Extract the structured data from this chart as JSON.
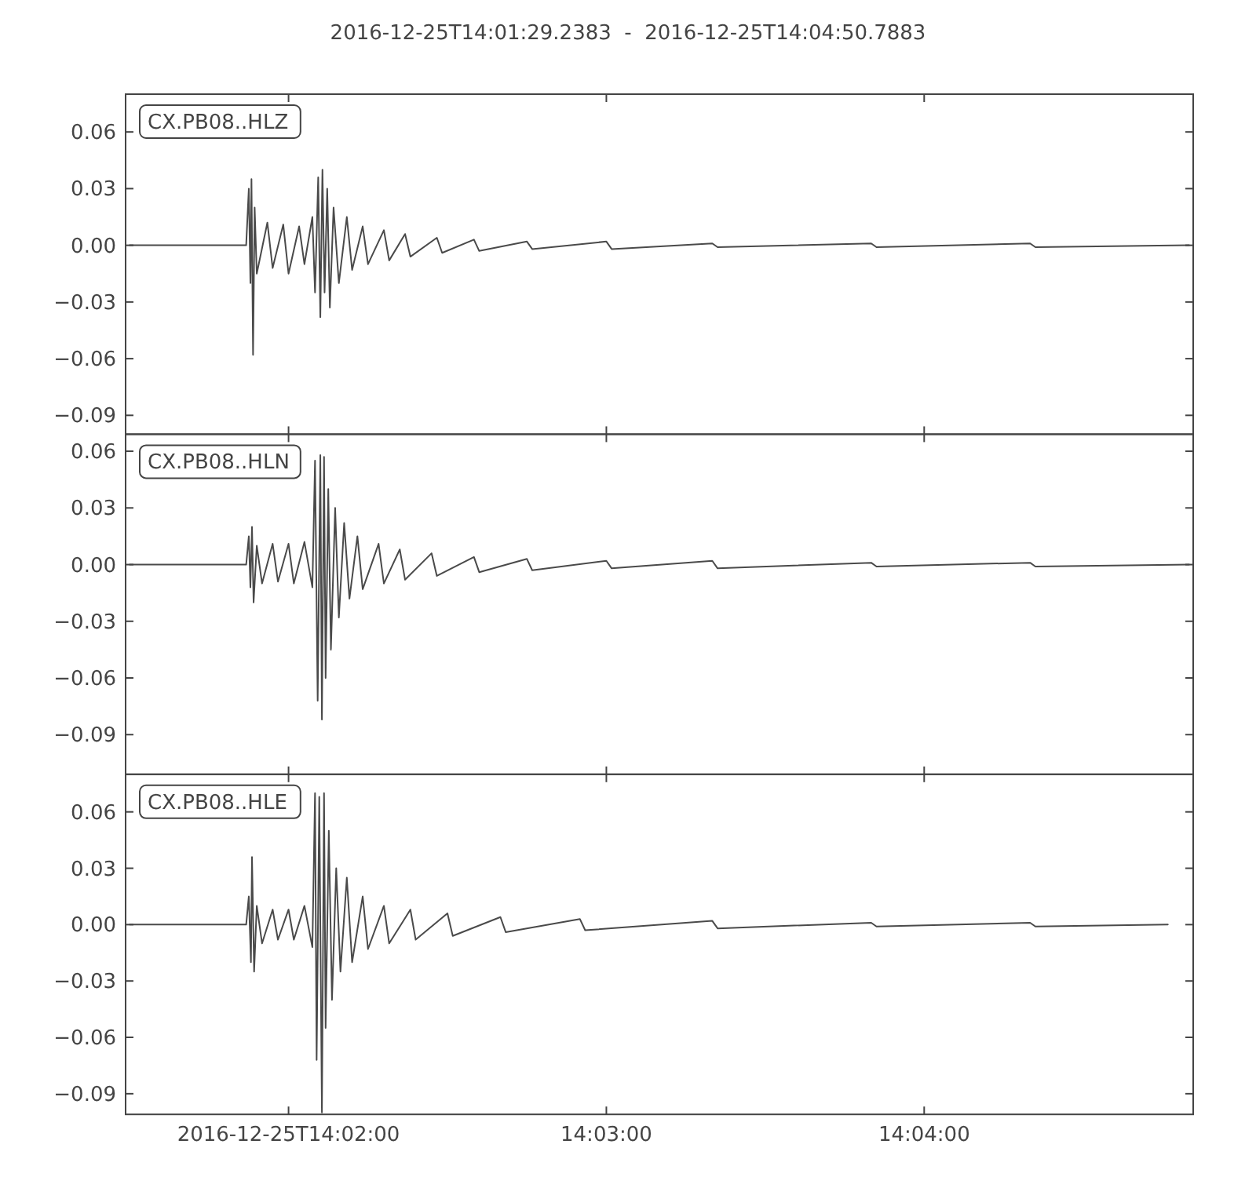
{
  "chart_data": [
    {
      "type": "line",
      "title": "2016-12-25T14:01:29.2383  -  2016-12-25T14:04:50.7883",
      "annotations": [
        "CX.PB08..HLZ"
      ],
      "tick_labels": "y",
      "xlim": [
        "2016-12-25T14:01:29.2383",
        "2016-12-25T14:04:50.7883"
      ],
      "xticks": [
        {
          "value": "2016-12-25T14:02:00",
          "label": null
        },
        {
          "value": "2016-12-25T14:03:00",
          "label": null
        },
        {
          "value": "2016-12-25T14:04:00",
          "label": null
        }
      ],
      "ylim": [
        -0.1,
        0.08
      ],
      "yticks": [
        {
          "value": -0.09,
          "label": "−0.09"
        },
        {
          "value": -0.06,
          "label": "−0.06"
        },
        {
          "value": -0.03,
          "label": "−0.03"
        },
        {
          "value": 0,
          "label": "0.00"
        },
        {
          "value": 0.03,
          "label": "0.03"
        },
        {
          "value": 0.06,
          "label": "0.06"
        }
      ],
      "x": [
        "2016-12-25T14:01:30",
        "2016-12-25T14:01:40",
        "2016-12-25T14:01:50",
        "2016-12-25T14:01:52",
        "2016-12-25T14:01:52.5",
        "2016-12-25T14:01:52.8",
        "2016-12-25T14:01:53",
        "2016-12-25T14:01:53.3",
        "2016-12-25T14:01:53.6",
        "2016-12-25T14:01:54",
        "2016-12-25T14:01:56",
        "2016-12-25T14:01:57",
        "2016-12-25T14:01:59",
        "2016-12-25T14:02:00",
        "2016-12-25T14:02:02",
        "2016-12-25T14:02:03",
        "2016-12-25T14:02:04.5",
        "2016-12-25T14:02:05",
        "2016-12-25T14:02:05.6",
        "2016-12-25T14:02:06",
        "2016-12-25T14:02:06.4",
        "2016-12-25T14:02:06.8",
        "2016-12-25T14:02:07.3",
        "2016-12-25T14:02:07.8",
        "2016-12-25T14:02:08.5",
        "2016-12-25T14:02:09.5",
        "2016-12-25T14:02:11",
        "2016-12-25T14:02:12",
        "2016-12-25T14:02:14",
        "2016-12-25T14:02:15",
        "2016-12-25T14:02:18",
        "2016-12-25T14:02:19",
        "2016-12-25T14:02:22",
        "2016-12-25T14:02:23",
        "2016-12-25T14:02:28",
        "2016-12-25T14:02:29",
        "2016-12-25T14:02:35",
        "2016-12-25T14:02:36",
        "2016-12-25T14:02:45",
        "2016-12-25T14:02:46",
        "2016-12-25T14:03:00",
        "2016-12-25T14:03:01",
        "2016-12-25T14:03:20",
        "2016-12-25T14:03:21",
        "2016-12-25T14:03:50",
        "2016-12-25T14:03:51",
        "2016-12-25T14:04:20",
        "2016-12-25T14:04:21",
        "2016-12-25T14:04:50"
      ],
      "series": [
        {
          "color": "#4a4a4a",
          "values": [
            0,
            0,
            0,
            0,
            0.03,
            -0.02,
            0.035,
            -0.058,
            0.02,
            -0.015,
            0.012,
            -0.012,
            0.011,
            -0.015,
            0.01,
            -0.01,
            0.015,
            -0.025,
            0.036,
            -0.038,
            0.04,
            -0.025,
            0.03,
            -0.033,
            0.02,
            -0.02,
            0.015,
            -0.013,
            0.01,
            -0.01,
            0.008,
            -0.008,
            0.006,
            -0.006,
            0.004,
            -0.004,
            0.003,
            -0.003,
            0.002,
            -0.002,
            0.002,
            -0.002,
            0.001,
            -0.001,
            0.001,
            -0.001,
            0.001,
            -0.001,
            0
          ]
        }
      ]
    },
    {
      "type": "line",
      "annotations": [
        "CX.PB08..HLN"
      ],
      "tick_labels": "y",
      "xlim": [
        "2016-12-25T14:01:29.2383",
        "2016-12-25T14:04:50.7883"
      ],
      "xticks": [
        {
          "value": "2016-12-25T14:02:00",
          "label": null
        },
        {
          "value": "2016-12-25T14:03:00",
          "label": null
        },
        {
          "value": "2016-12-25T14:04:00",
          "label": null
        }
      ],
      "ylim": [
        -0.111,
        0.069
      ],
      "yticks": [
        {
          "value": -0.09,
          "label": "−0.09"
        },
        {
          "value": -0.06,
          "label": "−0.06"
        },
        {
          "value": -0.03,
          "label": "−0.03"
        },
        {
          "value": 0,
          "label": "0.00"
        },
        {
          "value": 0.03,
          "label": "0.03"
        },
        {
          "value": 0.06,
          "label": "0.06"
        }
      ],
      "x": [
        "2016-12-25T14:01:30",
        "2016-12-25T14:01:50",
        "2016-12-25T14:01:52",
        "2016-12-25T14:01:52.5",
        "2016-12-25T14:01:52.8",
        "2016-12-25T14:01:53.1",
        "2016-12-25T14:01:53.4",
        "2016-12-25T14:01:54",
        "2016-12-25T14:01:55",
        "2016-12-25T14:01:57",
        "2016-12-25T14:01:58",
        "2016-12-25T14:02:00",
        "2016-12-25T14:02:01",
        "2016-12-25T14:02:03",
        "2016-12-25T14:02:04.5",
        "2016-12-25T14:02:05",
        "2016-12-25T14:02:05.5",
        "2016-12-25T14:02:06",
        "2016-12-25T14:02:06.3",
        "2016-12-25T14:02:06.7",
        "2016-12-25T14:02:07",
        "2016-12-25T14:02:07.5",
        "2016-12-25T14:02:08",
        "2016-12-25T14:02:08.8",
        "2016-12-25T14:02:09.5",
        "2016-12-25T14:02:10.5",
        "2016-12-25T14:02:11.5",
        "2016-12-25T14:02:13",
        "2016-12-25T14:02:14",
        "2016-12-25T14:02:17",
        "2016-12-25T14:02:18",
        "2016-12-25T14:02:21",
        "2016-12-25T14:02:22",
        "2016-12-25T14:02:27",
        "2016-12-25T14:02:28",
        "2016-12-25T14:02:35",
        "2016-12-25T14:02:36",
        "2016-12-25T14:02:45",
        "2016-12-25T14:02:46",
        "2016-12-25T14:03:00",
        "2016-12-25T14:03:01",
        "2016-12-25T14:03:20",
        "2016-12-25T14:03:21",
        "2016-12-25T14:03:50",
        "2016-12-25T14:03:51",
        "2016-12-25T14:04:20",
        "2016-12-25T14:04:21",
        "2016-12-25T14:04:50"
      ],
      "series": [
        {
          "color": "#4a4a4a",
          "values": [
            0,
            0,
            0,
            0.015,
            -0.012,
            0.02,
            -0.02,
            0.01,
            -0.01,
            0.011,
            -0.009,
            0.011,
            -0.01,
            0.012,
            -0.012,
            0.055,
            -0.072,
            0.058,
            -0.082,
            0.057,
            -0.06,
            0.04,
            -0.045,
            0.03,
            -0.028,
            0.022,
            -0.018,
            0.015,
            -0.013,
            0.011,
            -0.01,
            0.008,
            -0.008,
            0.006,
            -0.006,
            0.004,
            -0.004,
            0.003,
            -0.003,
            0.002,
            -0.002,
            0.002,
            -0.002,
            0.001,
            -0.001,
            0.001,
            -0.001,
            0
          ]
        }
      ]
    },
    {
      "type": "line",
      "annotations": [
        "CX.PB08..HLE"
      ],
      "xlim": [
        "2016-12-25T14:01:29.2383",
        "2016-12-25T14:04:50.7883"
      ],
      "xticks": [
        {
          "value": "2016-12-25T14:02:00",
          "label": "2016-12-25T14:02:00"
        },
        {
          "value": "2016-12-25T14:03:00",
          "label": "14:03:00"
        },
        {
          "value": "2016-12-25T14:04:00",
          "label": "14:04:00"
        }
      ],
      "ylim": [
        -0.101,
        0.08
      ],
      "yticks": [
        {
          "value": -0.09,
          "label": "−0.09"
        },
        {
          "value": -0.06,
          "label": "−0.06"
        },
        {
          "value": -0.03,
          "label": "−0.03"
        },
        {
          "value": 0,
          "label": "0.00"
        },
        {
          "value": 0.03,
          "label": "0.03"
        },
        {
          "value": 0.06,
          "label": "0.06"
        }
      ],
      "x": [
        "2016-12-25T14:01:30",
        "2016-12-25T14:01:50",
        "2016-12-25T14:01:52",
        "2016-12-25T14:01:52.5",
        "2016-12-25T14:01:52.9",
        "2016-12-25T14:01:53.1",
        "2016-12-25T14:01:53.5",
        "2016-12-25T14:01:54",
        "2016-12-25T14:01:55",
        "2016-12-25T14:01:57",
        "2016-12-25T14:01:58",
        "2016-12-25T14:02:00",
        "2016-12-25T14:02:01",
        "2016-12-25T14:02:03",
        "2016-12-25T14:02:04.5",
        "2016-12-25T14:02:05",
        "2016-12-25T14:02:05.3",
        "2016-12-25T14:02:05.8",
        "2016-12-25T14:02:06.3",
        "2016-12-25T14:02:06.7",
        "2016-12-25T14:02:07",
        "2016-12-25T14:02:07.6",
        "2016-12-25T14:02:08.2",
        "2016-12-25T14:02:09",
        "2016-12-25T14:02:09.8",
        "2016-12-25T14:02:11",
        "2016-12-25T14:02:12",
        "2016-12-25T14:02:14",
        "2016-12-25T14:02:15",
        "2016-12-25T14:02:18",
        "2016-12-25T14:02:19",
        "2016-12-25T14:02:23",
        "2016-12-25T14:02:24",
        "2016-12-25T14:02:30",
        "2016-12-25T14:02:31",
        "2016-12-25T14:02:40",
        "2016-12-25T14:02:41",
        "2016-12-25T14:02:55",
        "2016-12-25T14:02:56",
        "2016-12-25T14:03:20",
        "2016-12-25T14:03:21",
        "2016-12-25T14:03:50",
        "2016-12-25T14:03:51",
        "2016-12-25T14:04:20",
        "2016-12-25T14:04:21",
        "2016-12-25T14:04:46"
      ],
      "series": [
        {
          "color": "#4a4a4a",
          "values": [
            0,
            0,
            0,
            0.015,
            -0.02,
            0.036,
            -0.025,
            0.01,
            -0.01,
            0.008,
            -0.008,
            0.008,
            -0.008,
            0.01,
            -0.012,
            0.07,
            -0.072,
            0.068,
            -0.1,
            0.07,
            -0.055,
            0.05,
            -0.04,
            0.03,
            -0.025,
            0.025,
            -0.02,
            0.015,
            -0.013,
            0.01,
            -0.01,
            0.008,
            -0.008,
            0.006,
            -0.006,
            0.004,
            -0.004,
            0.003,
            -0.003,
            0.002,
            -0.002,
            0.001,
            -0.001,
            0.001,
            -0.001,
            0
          ]
        }
      ]
    }
  ]
}
